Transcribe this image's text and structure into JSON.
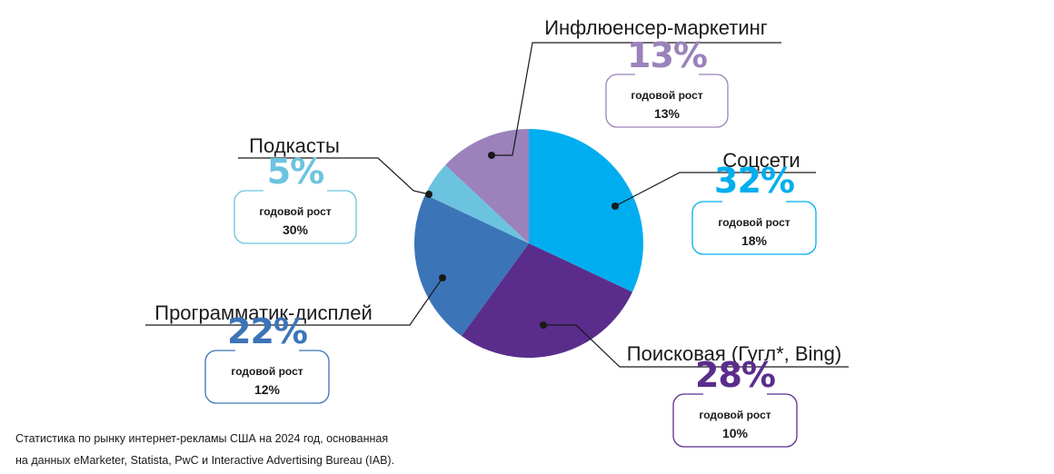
{
  "chart_data": {
    "type": "pie",
    "subtitle_label": "годовой рост",
    "slices": [
      {
        "id": "socials",
        "label": "Соцсети",
        "value": 32,
        "value_label": "32%",
        "growth_label": "18%",
        "color": "#00aeef"
      },
      {
        "id": "search",
        "label": "Поисковая (Гугл*, Bing)",
        "value": 28,
        "value_label": "28%",
        "growth_label": "10%",
        "color": "#5a2d8c"
      },
      {
        "id": "programmatic",
        "label": "Программатик-дисплей",
        "value": 22,
        "value_label": "22%",
        "growth_label": "12%",
        "color": "#3c74b8"
      },
      {
        "id": "podcasts",
        "label": "Подкасты",
        "value": 5,
        "value_label": "5%",
        "growth_label": "30%",
        "color": "#6cc3e0"
      },
      {
        "id": "influencer",
        "label": "Инфлюенсер-маркетинг",
        "value": 13,
        "value_label": "13%",
        "growth_label": "13%",
        "color": "#9b82bb"
      }
    ]
  },
  "footnote": {
    "line1": "Статистика по рынку интернет-рекламы США на 2024 год, основанная",
    "line2": "на данных eMarketer, Statista, PwC и Interactive Advertising Bureau (IAB)."
  }
}
